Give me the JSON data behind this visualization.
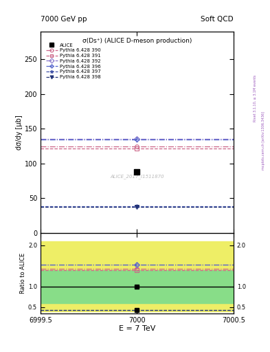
{
  "title_left": "7000 GeV pp",
  "title_right": "Soft QCD",
  "plot_title": "σ(Ds⁺) (ALICE D-meson production)",
  "xlabel": "E = 7 TeV",
  "ylabel_main": "dσ\n ―\ndy\n[μb]",
  "ylabel_ratio": "Ratio to ALICE",
  "watermark": "ALICE_2017_I1511870",
  "right_label1": "Rivet 3.1.10, ≥ 3.1M events",
  "right_label2": "mcplots.cern.ch [arXiv:1306.3436]",
  "xmin": 6999.5,
  "xmax": 7000.5,
  "x_val": 7000.0,
  "alice_y": 88.0,
  "pythia_lines": [
    {
      "label": "Pythia 6.428 390",
      "y": 125.0,
      "color": "#cc6688",
      "ls": "-.",
      "marker": "o",
      "lw": 0.9
    },
    {
      "label": "Pythia 6.428 391",
      "y": 122.0,
      "color": "#cc6688",
      "ls": "--",
      "marker": "s",
      "lw": 0.9
    },
    {
      "label": "Pythia 6.428 392",
      "y": 135.0,
      "color": "#8877cc",
      "ls": "-.",
      "marker": "D",
      "lw": 0.9
    },
    {
      "label": "Pythia 6.428 396",
      "y": 134.0,
      "color": "#5566cc",
      "ls": "-.",
      "marker": "P",
      "lw": 0.9
    },
    {
      "label": "Pythia 6.428 397",
      "y": 38.0,
      "color": "#4455aa",
      "ls": "--",
      "marker": "*",
      "lw": 0.9
    },
    {
      "label": "Pythia 6.428 398",
      "y": 37.5,
      "color": "#223377",
      "ls": "--",
      "marker": "v",
      "lw": 0.9
    }
  ],
  "ylim_main": [
    0,
    290
  ],
  "yticks_main": [
    0,
    50,
    100,
    150,
    200,
    250
  ],
  "ylim_ratio": [
    0.35,
    2.3
  ],
  "yticks_ratio": [
    0.5,
    1.0,
    2.0
  ],
  "green_band": [
    0.6,
    1.4
  ],
  "yellow_band": [
    0.4,
    2.1
  ],
  "bg_color": "#ffffff"
}
